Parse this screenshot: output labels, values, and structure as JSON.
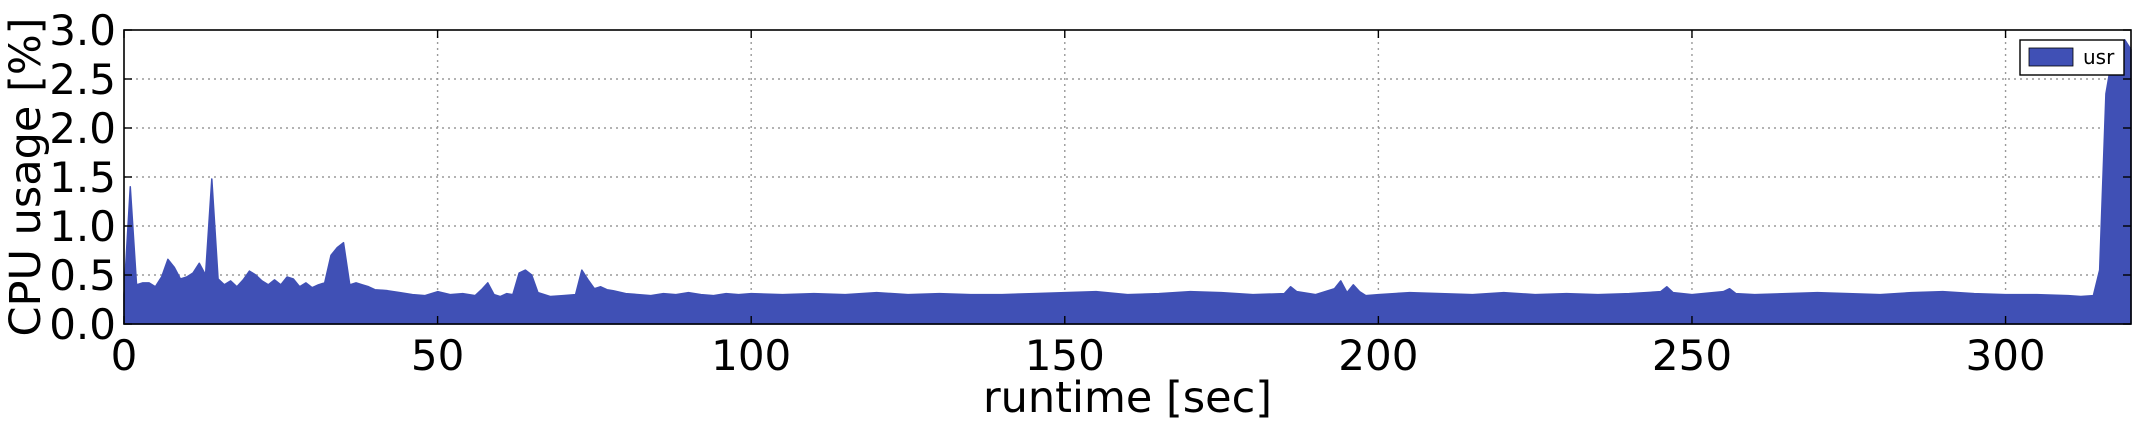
{
  "chart_data": {
    "type": "area",
    "title": "",
    "xlabel": "runtime [sec]",
    "ylabel": "CPU usage [%]",
    "xlim": [
      0,
      320
    ],
    "ylim": [
      0.0,
      3.0
    ],
    "xticks": [
      "0",
      "50",
      "100",
      "150",
      "200",
      "250",
      "300"
    ],
    "xtick_values": [
      0,
      50,
      100,
      150,
      200,
      250,
      300
    ],
    "yticks": [
      "0.0",
      "0.5",
      "1.0",
      "1.5",
      "2.0",
      "2.5",
      "3.0"
    ],
    "ytick_values": [
      0,
      0.5,
      1.0,
      1.5,
      2.0,
      2.5,
      3.0
    ],
    "grid": true,
    "legend_position": "top-right",
    "series": [
      {
        "name": "usr",
        "color": "#4050b5",
        "x": [
          0,
          1,
          2,
          3,
          4,
          5,
          6,
          7,
          8,
          9,
          10,
          11,
          12,
          13,
          14,
          15,
          16,
          17,
          18,
          19,
          20,
          21,
          22,
          23,
          24,
          25,
          26,
          27,
          28,
          29,
          30,
          31,
          32,
          33,
          34,
          35,
          36,
          37,
          38,
          39,
          40,
          42,
          44,
          46,
          48,
          50,
          52,
          54,
          56,
          57,
          58,
          59,
          60,
          61,
          62,
          63,
          64,
          65,
          66,
          67,
          68,
          70,
          72,
          73,
          74,
          75,
          76,
          77,
          78,
          80,
          82,
          84,
          86,
          88,
          90,
          92,
          94,
          96,
          98,
          100,
          105,
          110,
          115,
          120,
          125,
          130,
          135,
          140,
          145,
          150,
          155,
          160,
          165,
          170,
          175,
          180,
          185,
          186,
          187,
          190,
          193,
          194,
          195,
          196,
          197,
          198,
          200,
          205,
          210,
          215,
          220,
          225,
          230,
          235,
          240,
          245,
          246,
          247,
          250,
          255,
          256,
          257,
          260,
          265,
          270,
          275,
          280,
          285,
          290,
          295,
          300,
          305,
          310,
          312,
          314,
          315,
          316,
          317,
          318,
          319,
          320
        ],
        "values": [
          0.3,
          1.4,
          0.4,
          0.42,
          0.42,
          0.38,
          0.48,
          0.66,
          0.58,
          0.46,
          0.48,
          0.52,
          0.62,
          0.5,
          1.48,
          0.46,
          0.4,
          0.44,
          0.38,
          0.45,
          0.54,
          0.5,
          0.44,
          0.4,
          0.45,
          0.4,
          0.48,
          0.46,
          0.38,
          0.42,
          0.37,
          0.4,
          0.42,
          0.7,
          0.78,
          0.83,
          0.4,
          0.42,
          0.4,
          0.38,
          0.35,
          0.34,
          0.32,
          0.3,
          0.29,
          0.33,
          0.3,
          0.31,
          0.29,
          0.35,
          0.42,
          0.3,
          0.28,
          0.31,
          0.3,
          0.52,
          0.55,
          0.5,
          0.32,
          0.3,
          0.28,
          0.29,
          0.3,
          0.55,
          0.45,
          0.36,
          0.38,
          0.35,
          0.34,
          0.31,
          0.3,
          0.29,
          0.31,
          0.3,
          0.32,
          0.3,
          0.29,
          0.31,
          0.3,
          0.31,
          0.3,
          0.31,
          0.3,
          0.32,
          0.3,
          0.31,
          0.3,
          0.3,
          0.31,
          0.32,
          0.33,
          0.3,
          0.31,
          0.33,
          0.32,
          0.3,
          0.31,
          0.38,
          0.33,
          0.3,
          0.36,
          0.44,
          0.32,
          0.4,
          0.33,
          0.29,
          0.3,
          0.32,
          0.31,
          0.3,
          0.32,
          0.3,
          0.31,
          0.3,
          0.31,
          0.33,
          0.38,
          0.32,
          0.3,
          0.33,
          0.36,
          0.31,
          0.3,
          0.31,
          0.32,
          0.31,
          0.3,
          0.32,
          0.33,
          0.31,
          0.3,
          0.3,
          0.29,
          0.28,
          0.29,
          0.55,
          2.35,
          2.72,
          2.85,
          2.9,
          2.8
        ]
      }
    ]
  }
}
